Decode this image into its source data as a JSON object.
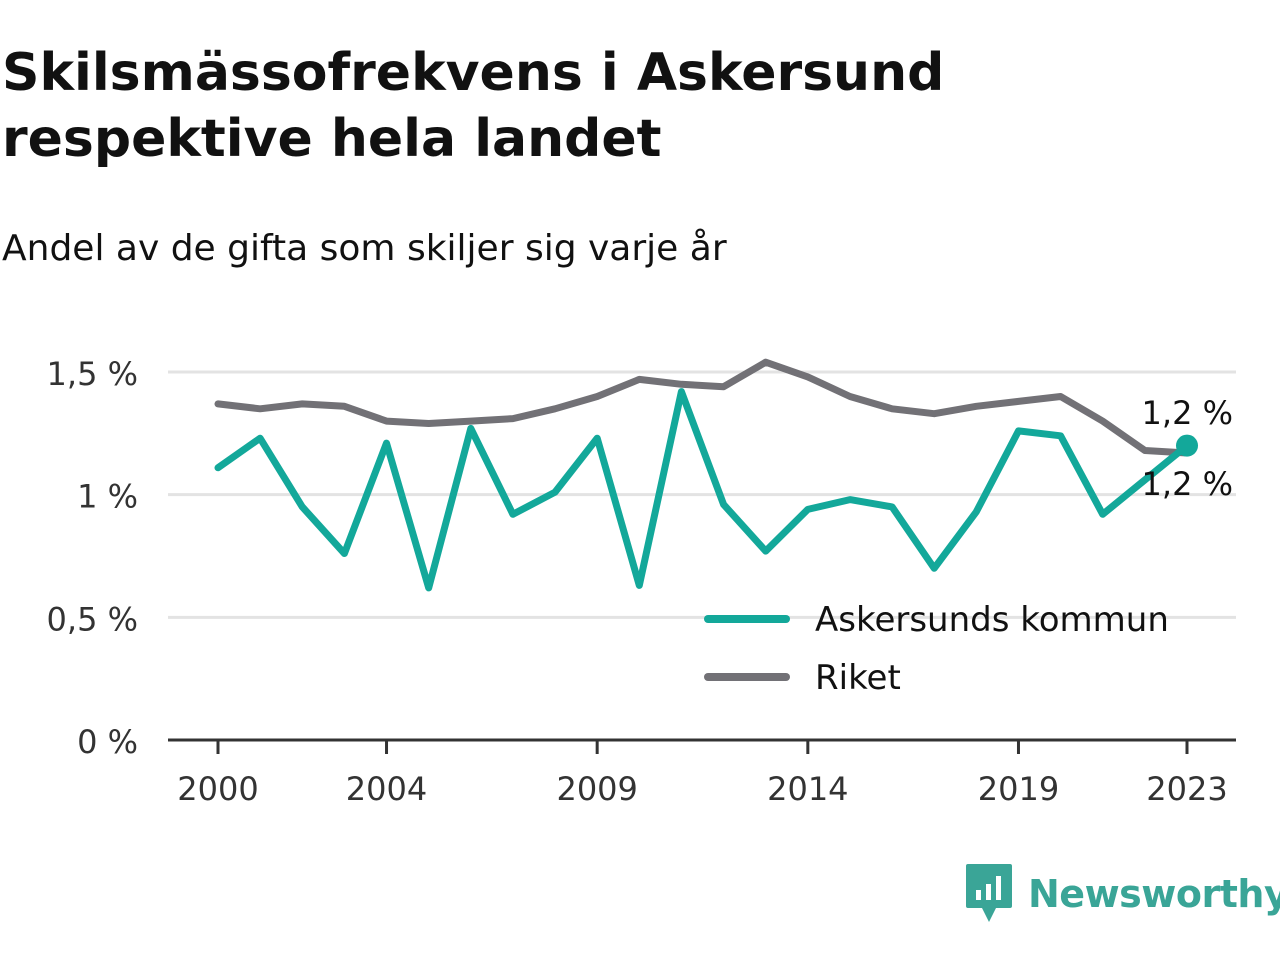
{
  "title": "Skilsmässofrekvens i Askersund respektive hela landet",
  "subtitle": "Andel av de gifta som skiljer sig varje år",
  "brand": "Newsworthy",
  "colors": {
    "askersund": "#13a89a",
    "riket": "#727176",
    "grid": "#e3e3e3",
    "axis": "#333333",
    "brand": "#3aa597"
  },
  "chart_data": {
    "type": "line",
    "x": [
      2000,
      2001,
      2002,
      2003,
      2004,
      2005,
      2006,
      2007,
      2008,
      2009,
      2010,
      2011,
      2012,
      2013,
      2014,
      2015,
      2016,
      2017,
      2018,
      2019,
      2020,
      2021,
      2022,
      2023
    ],
    "x_ticks": [
      2000,
      2004,
      2009,
      2014,
      2019,
      2023
    ],
    "x_tick_labels": [
      "2000",
      "2004",
      "2009",
      "2014",
      "2019",
      "2023"
    ],
    "y_ticks": [
      0,
      0.5,
      1,
      1.5
    ],
    "y_tick_labels": [
      "0 %",
      "0,5 %",
      "1 %",
      "1,5 %"
    ],
    "ylim": [
      0,
      1.5
    ],
    "grid": true,
    "legend_position": "bottom-right",
    "series": [
      {
        "name": "Askersunds kommun",
        "color": "#13a89a",
        "values": [
          1.11,
          1.23,
          0.95,
          0.76,
          1.21,
          0.62,
          1.27,
          0.92,
          1.01,
          1.23,
          0.63,
          1.42,
          0.96,
          0.77,
          0.94,
          0.98,
          0.95,
          0.7,
          0.93,
          1.26,
          1.24,
          0.92,
          1.06,
          1.2
        ],
        "end_label": "1,2 %",
        "end_marker": true
      },
      {
        "name": "Riket",
        "color": "#727176",
        "values": [
          1.37,
          1.35,
          1.37,
          1.36,
          1.3,
          1.29,
          1.3,
          1.31,
          1.35,
          1.4,
          1.47,
          1.45,
          1.44,
          1.54,
          1.48,
          1.4,
          1.35,
          1.33,
          1.36,
          1.38,
          1.4,
          1.3,
          1.18,
          1.17
        ],
        "end_label": "1,2 %",
        "end_marker": false
      }
    ]
  }
}
